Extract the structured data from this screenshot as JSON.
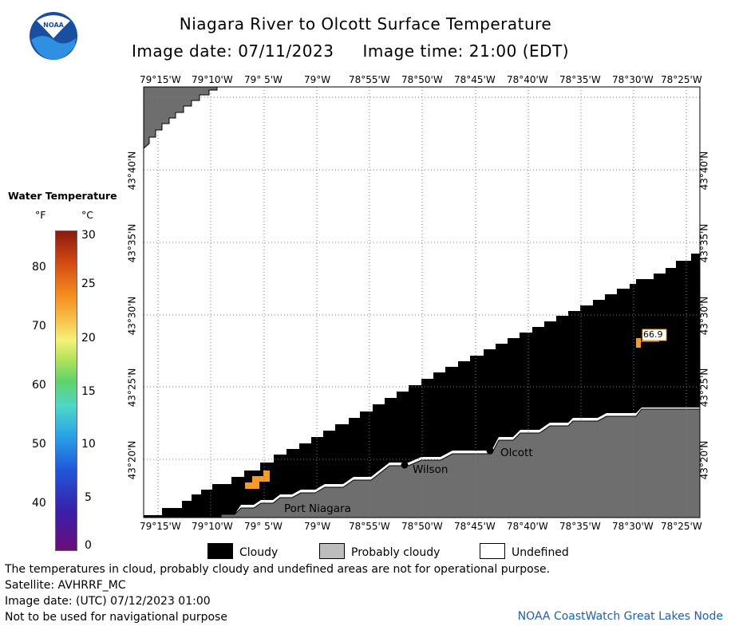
{
  "header": {
    "title": "Niagara River to Olcott Surface Temperature",
    "image_date_label": "Image date: 07/11/2023",
    "image_time_label": "Image time: 21:00 (EDT)"
  },
  "logo": {
    "text": "NOAA",
    "icon": "noaa-logo-icon"
  },
  "map": {
    "top_lon_labels": [
      "79°15'W",
      "79°10'W",
      "79° 5'W",
      "79°W",
      "78°55'W",
      "78°50'W",
      "78°45'W",
      "78°40'W",
      "78°35'W",
      "78°30'W",
      "78°25'W"
    ],
    "bottom_lon_labels": [
      "79°15'W",
      "79°10'W",
      "79° 5'W",
      "79°W",
      "78°55'W",
      "78°50'W",
      "78°45'W",
      "78°40'W",
      "78°35'W",
      "78°30'W",
      "78°25'W"
    ],
    "left_lat_labels": [
      "43°40'N",
      "43°35'N",
      "43°30'N",
      "43°25'N",
      "43°20'N"
    ],
    "right_lat_labels": [
      "43°40'N",
      "43°35'N",
      "43°30'N",
      "43°25'N",
      "43°20'N"
    ],
    "places": {
      "olcott": "Olcott",
      "wilson": "Wilson",
      "port_niagara": "Port Niagara"
    },
    "temperature_label": "66.9"
  },
  "legend": {
    "title": "Water Temperature",
    "unit_f": "°F",
    "unit_c": "°C",
    "fahrenheit_ticks": [
      "80",
      "70",
      "60",
      "50",
      "40"
    ],
    "celsius_ticks": [
      "30",
      "25",
      "20",
      "15",
      "10",
      "5",
      "0"
    ],
    "fahrenheit_values": [
      80,
      70,
      60,
      50,
      40
    ],
    "celsius_values": [
      30,
      25,
      20,
      15,
      10,
      5,
      0
    ],
    "cloudy": "Cloudy",
    "probably_cloudy": "Probably cloudy",
    "undefined": "Undefined",
    "colors": {
      "cloudy": "#000000",
      "probably_cloudy": "#808080",
      "undefined": "#ffffff"
    }
  },
  "footer": {
    "disclaimer": "The temperatures in cloud, probably cloudy and undefined areas are not for operational purpose.",
    "satellite": "Satellite: AVHRRF_MC",
    "utc_date": "Image date: (UTC) 07/12/2023  01:00",
    "navigation": "Not to be used for navigational purpose",
    "credit": "NOAA CoastWatch Great Lakes Node"
  }
}
